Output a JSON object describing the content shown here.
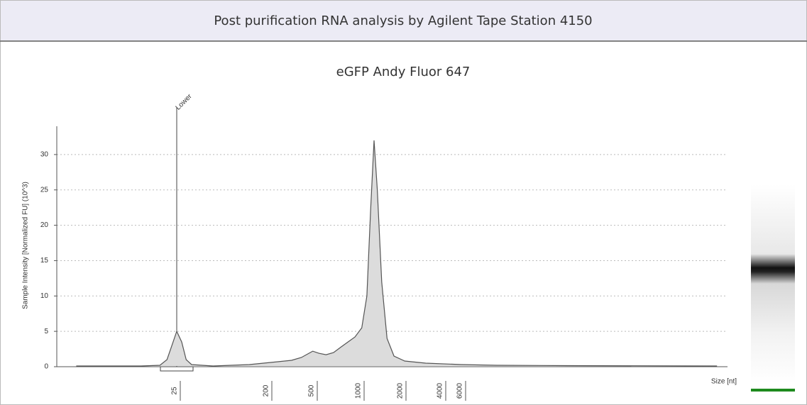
{
  "header": {
    "title": "Post purification RNA analysis by Agilent Tape Station 4150"
  },
  "chart_data": {
    "type": "area",
    "title": "eGFP Andy Fluor 647",
    "y_label": "Sample Intensity [Normalized FU] (10^3)",
    "x_label": "Size [nt]",
    "x_scale": "log",
    "x": [
      2.5,
      11,
      17,
      20,
      23,
      25,
      28,
      31,
      35,
      57,
      130,
      210,
      320,
      390,
      490,
      540,
      600,
      670,
      750,
      830,
      920,
      1020,
      1110,
      1180,
      1250,
      1320,
      1420,
      1550,
      1740,
      2080,
      3000,
      5900,
      12200,
      52000,
      1090000
    ],
    "values": [
      0.1,
      0.1,
      0.2,
      1.0,
      3.5,
      5.0,
      3.5,
      1.0,
      0.3,
      0.1,
      0.3,
      0.6,
      0.9,
      1.3,
      2.2,
      1.9,
      1.7,
      2.0,
      2.8,
      3.5,
      4.2,
      5.5,
      10,
      22,
      32,
      25,
      12,
      4,
      1.5,
      0.8,
      0.5,
      0.3,
      0.2,
      0.15,
      0.1
    ],
    "color": "#dcdcdc",
    "line_color": "#555555",
    "xlim": [
      1.6,
      1350000
    ],
    "xticks": [
      25,
      200,
      500,
      1000,
      2000,
      4000,
      6000
    ],
    "ylim": [
      0,
      34
    ],
    "yticks": [
      0,
      5,
      10,
      15,
      20,
      25,
      30
    ],
    "grid": true,
    "annotations": [
      {
        "label": "Lower",
        "x": 25
      }
    ]
  }
}
